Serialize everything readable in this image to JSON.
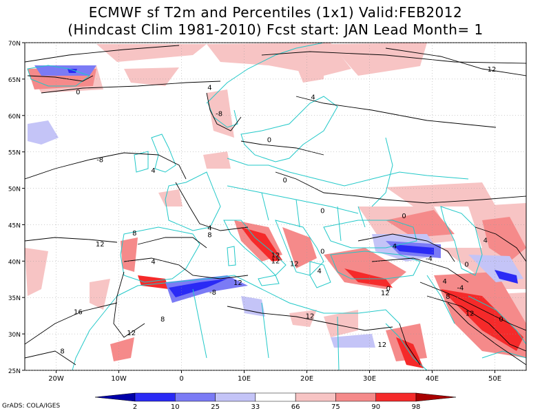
{
  "title": {
    "line1": "ECMWF sf T2m and Percentiles (1x1) Valid:FEB2012",
    "line2": "(Hindcast Clim 1981-2010) Fcst start: JAN  Lead Month= 1"
  },
  "credit": "GrADS: COLA/IGES",
  "map": {
    "lon_range": [
      -25,
      55
    ],
    "lat_range": [
      25,
      70
    ],
    "lon_tick_labels": [
      {
        "value": -20,
        "label": "20W"
      },
      {
        "value": -10,
        "label": "10W"
      },
      {
        "value": 0,
        "label": "0"
      },
      {
        "value": 10,
        "label": "10E"
      },
      {
        "value": 20,
        "label": "20E"
      },
      {
        "value": 30,
        "label": "30E"
      },
      {
        "value": 40,
        "label": "40E"
      },
      {
        "value": 50,
        "label": "50E"
      }
    ],
    "lat_tick_labels": [
      {
        "value": 25,
        "label": "25N"
      },
      {
        "value": 30,
        "label": "30N"
      },
      {
        "value": 35,
        "label": "35N"
      },
      {
        "value": 40,
        "label": "40N"
      },
      {
        "value": 45,
        "label": "45N"
      },
      {
        "value": 50,
        "label": "50N"
      },
      {
        "value": 55,
        "label": "55N"
      },
      {
        "value": 60,
        "label": "60N"
      },
      {
        "value": 65,
        "label": "65N"
      },
      {
        "value": 70,
        "label": "70N"
      }
    ],
    "coast_color": "#20c8c8",
    "contour_color": "#000000",
    "contour_labels": [
      {
        "text": "12",
        "lon": 49.5,
        "lat": 66.3
      },
      {
        "text": "4",
        "lon": 4.5,
        "lat": 63.8
      },
      {
        "text": "0",
        "lon": -16.5,
        "lat": 63.2
      },
      {
        "text": "4",
        "lon": 21,
        "lat": 62.5
      },
      {
        "text": "-8",
        "lon": 6,
        "lat": 60.2
      },
      {
        "text": "0",
        "lon": 14,
        "lat": 56.6
      },
      {
        "text": "-8",
        "lon": -13,
        "lat": 53.9
      },
      {
        "text": "4",
        "lon": -4.5,
        "lat": 52.4
      },
      {
        "text": "0",
        "lon": 16.5,
        "lat": 51.1
      },
      {
        "text": "0",
        "lon": 22.5,
        "lat": 46.9
      },
      {
        "text": "0",
        "lon": 35.5,
        "lat": 46.2
      },
      {
        "text": "4",
        "lon": 4.5,
        "lat": 44.5
      },
      {
        "text": "8",
        "lon": 4.5,
        "lat": 43.6
      },
      {
        "text": "8",
        "lon": -7.5,
        "lat": 43.8
      },
      {
        "text": "12",
        "lon": -13,
        "lat": 42.3
      },
      {
        "text": "4",
        "lon": 48.5,
        "lat": 42.8
      },
      {
        "text": "4",
        "lon": 34,
        "lat": 42.0
      },
      {
        "text": "12",
        "lon": 15,
        "lat": 40.8
      },
      {
        "text": "-4",
        "lon": 39.5,
        "lat": 40.3
      },
      {
        "text": "12",
        "lon": 15,
        "lat": 40.0
      },
      {
        "text": "4",
        "lon": -4.5,
        "lat": 39.9
      },
      {
        "text": "0",
        "lon": 22.5,
        "lat": 41.3
      },
      {
        "text": "12",
        "lon": 18,
        "lat": 39.6
      },
      {
        "text": "4",
        "lon": 22,
        "lat": 38.6
      },
      {
        "text": "0",
        "lon": 45.5,
        "lat": 39.5
      },
      {
        "text": "12",
        "lon": 9,
        "lat": 37.0
      },
      {
        "text": "4",
        "lon": 42,
        "lat": 37.2
      },
      {
        "text": "-8",
        "lon": 5,
        "lat": 35.7
      },
      {
        "text": "12",
        "lon": 32.5,
        "lat": 35.6
      },
      {
        "text": "8",
        "lon": 42.5,
        "lat": 35.1
      },
      {
        "text": "-4",
        "lon": 44.5,
        "lat": 36.3
      },
      {
        "text": "0",
        "lon": 33,
        "lat": 36.2
      },
      {
        "text": "16",
        "lon": -16.5,
        "lat": 33.0
      },
      {
        "text": "12",
        "lon": 46,
        "lat": 32.8
      },
      {
        "text": "8",
        "lon": -3,
        "lat": 32.0
      },
      {
        "text": "12",
        "lon": 20.5,
        "lat": 32.4
      },
      {
        "text": "0",
        "lon": 51,
        "lat": 32.0
      },
      {
        "text": "12",
        "lon": -8,
        "lat": 30.1
      },
      {
        "text": "12",
        "lon": 32,
        "lat": 28.5
      },
      {
        "text": "8",
        "lon": -19,
        "lat": 27.6
      }
    ]
  },
  "colorbar": {
    "labels": [
      "2",
      "10",
      "25",
      "33",
      "66",
      "75",
      "90",
      "98"
    ],
    "colors": [
      "#0000a8",
      "#2a2af5",
      "#7b7bf5",
      "#c4c4f7",
      "#ffffff",
      "#f7c4c4",
      "#f58a8a",
      "#f52a2a",
      "#a80000"
    ]
  },
  "legend": {
    "anomaly_colors": {
      "p2_10": "#2a2af5",
      "p10_25": "#7b7bf5",
      "p25_33": "#c4c4f7",
      "p66_75": "#f7c4c4",
      "p75_90": "#f58a8a",
      "p90_98": "#f52a2a"
    }
  }
}
